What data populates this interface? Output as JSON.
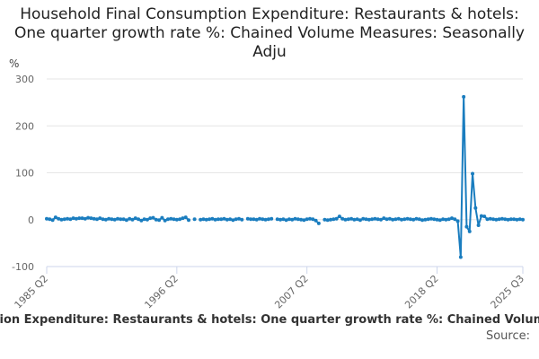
{
  "chart_data": {
    "type": "line",
    "title": "Household Final Consumption Expenditure: Restaurants & hotels: One quarter growth rate %: Chained Volume Measures: Seasonally Adju",
    "y_label": "%",
    "footer": "ption Expenditure: Restaurants & hotels: One quarter growth rate %: Chained Volume",
    "source": "Source:",
    "color": "#1a7dbf",
    "grid": true,
    "ylim": [
      -100,
      300
    ],
    "yticks": [
      -100,
      0,
      100,
      200,
      300
    ],
    "categories": [
      "1985 Q2",
      null,
      null,
      null,
      null,
      null,
      null,
      null,
      null,
      null,
      null,
      null,
      null,
      null,
      null,
      null,
      null,
      null,
      null,
      null,
      null,
      null,
      null,
      null,
      null,
      null,
      null,
      null,
      null,
      null,
      null,
      null,
      null,
      null,
      null,
      null,
      null,
      null,
      null,
      null,
      null,
      null,
      null,
      null,
      "1996 Q2",
      null,
      null,
      null,
      null,
      null,
      null,
      null,
      null,
      null,
      null,
      null,
      null,
      null,
      null,
      null,
      null,
      null,
      null,
      null,
      null,
      null,
      null,
      null,
      null,
      null,
      null,
      null,
      null,
      null,
      null,
      null,
      null,
      null,
      null,
      null,
      null,
      null,
      null,
      null,
      null,
      null,
      null,
      null,
      "2007 Q2",
      null,
      null,
      null,
      null,
      null,
      null,
      null,
      null,
      null,
      null,
      null,
      null,
      null,
      null,
      null,
      null,
      null,
      null,
      null,
      null,
      null,
      null,
      null,
      null,
      null,
      null,
      null,
      null,
      null,
      null,
      null,
      null,
      null,
      null,
      null,
      null,
      null,
      null,
      null,
      null,
      null,
      null,
      null,
      "2018 Q2",
      null,
      null,
      null,
      null,
      null,
      null,
      null,
      null,
      null,
      null,
      null,
      null,
      null,
      null,
      null,
      null,
      null,
      null,
      null,
      null,
      null,
      null,
      null,
      null,
      null,
      null,
      null,
      null,
      "2025 Q3"
    ],
    "values": [
      2,
      1,
      -1,
      5,
      2,
      0,
      1,
      2,
      1,
      3,
      2,
      3,
      3,
      2,
      4,
      3,
      2,
      1,
      3,
      1,
      0,
      2,
      1,
      0,
      2,
      1,
      1,
      -1,
      2,
      0,
      3,
      1,
      -2,
      1,
      0,
      3,
      4,
      0,
      -1,
      4,
      -2,
      1,
      2,
      1,
      0,
      1,
      3,
      5,
      -1,
      null,
      1,
      null,
      0,
      1,
      0,
      1,
      2,
      0,
      1,
      1,
      2,
      0,
      1,
      -1,
      1,
      2,
      0,
      null,
      2,
      1,
      1,
      0,
      2,
      1,
      0,
      1,
      2,
      null,
      1,
      0,
      1,
      -1,
      1,
      0,
      2,
      1,
      0,
      -1,
      1,
      2,
      1,
      -2,
      -8,
      null,
      0,
      -1,
      0,
      1,
      2,
      7,
      2,
      0,
      1,
      2,
      0,
      1,
      -1,
      2,
      1,
      0,
      1,
      2,
      1,
      0,
      3,
      1,
      2,
      0,
      1,
      2,
      0,
      1,
      2,
      1,
      0,
      2,
      1,
      -1,
      0,
      1,
      2,
      1,
      0,
      -1,
      1,
      0,
      1,
      3,
      1,
      -3,
      -80,
      262,
      -15,
      -25,
      98,
      25,
      -12,
      8,
      7,
      1,
      2,
      1,
      0,
      1,
      2,
      1,
      0,
      1,
      1,
      0,
      1,
      0
    ]
  }
}
